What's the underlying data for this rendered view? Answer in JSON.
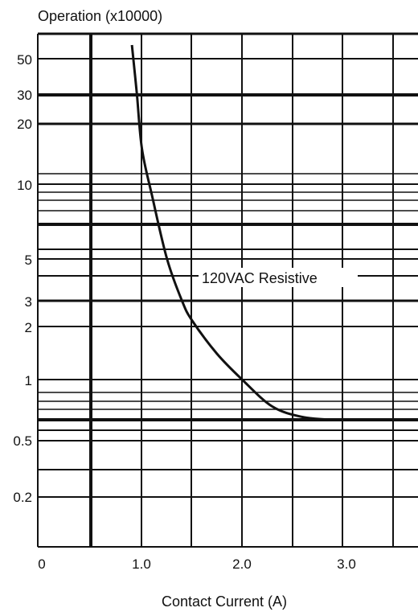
{
  "chart_data": {
    "type": "line",
    "ylabel": "Operation (x10000)",
    "xlabel": "Contact Current (A)",
    "annotation": "120VAC Resistive",
    "x_ticks": [
      "0",
      "1.0",
      "2.0",
      "3.0"
    ],
    "y_ticks": [
      "50",
      "30",
      "20",
      "10",
      "5",
      "3",
      "2",
      "1",
      "0.5",
      "0.2"
    ],
    "xlim": [
      0,
      3.75
    ],
    "series": [
      {
        "name": "120VAC Resistive",
        "points": [
          {
            "x": 0.9,
            "y": 55
          },
          {
            "x": 0.95,
            "y": 30
          },
          {
            "x": 1.0,
            "y": 15
          },
          {
            "x": 1.1,
            "y": 9
          },
          {
            "x": 1.25,
            "y": 5
          },
          {
            "x": 1.4,
            "y": 3
          },
          {
            "x": 1.5,
            "y": 2.2
          },
          {
            "x": 1.75,
            "y": 1.4
          },
          {
            "x": 2.0,
            "y": 1.0
          },
          {
            "x": 2.3,
            "y": 0.75
          },
          {
            "x": 2.6,
            "y": 0.67
          },
          {
            "x": 2.9,
            "y": 0.65
          }
        ]
      }
    ],
    "colors": {
      "line": "#111111",
      "grid": "#111111",
      "background": "#ffffff"
    }
  }
}
